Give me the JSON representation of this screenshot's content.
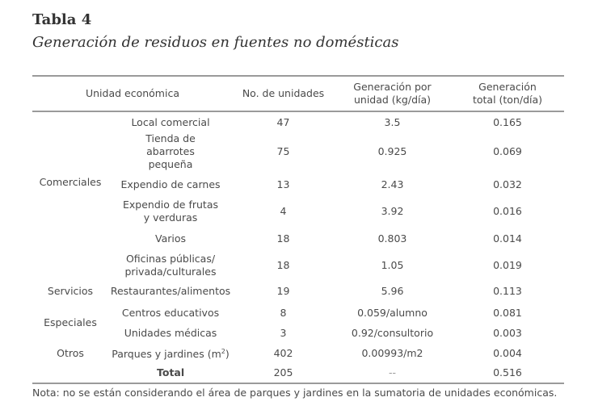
{
  "title": "Tabla 4",
  "subtitle": "Generación de residuos en fuentes no domésticas",
  "headers": [
    "Unidad económica",
    "No. de unidades",
    "Generación por unidad (kg/día)",
    "Generación total (ton/día)"
  ],
  "categories": [
    "Comerciales",
    "Servicios",
    "Especiales",
    "Otros"
  ],
  "rows": [
    {
      "unit": "Local comercial",
      "count": "47",
      "per_unit": "3.5",
      "total": "0.165"
    },
    {
      "unit": "Tienda de abarrotes pequeña",
      "count": "75",
      "per_unit": "0.925",
      "total": "0.069"
    },
    {
      "unit": "Expendio de carnes",
      "count": "13",
      "per_unit": "2.43",
      "total": "0.032"
    },
    {
      "unit": "Expendio de frutas y verduras",
      "count": "4",
      "per_unit": "3.92",
      "total": "0.016"
    },
    {
      "unit": "Varios",
      "count": "18",
      "per_unit": "0.803",
      "total": "0.014"
    },
    {
      "unit": "Oficinas públicas/ privada/culturales",
      "count": "18",
      "per_unit": "1.05",
      "total": "0.019"
    },
    {
      "unit": "Restaurantes/alimentos",
      "count": "19",
      "per_unit": "5.96",
      "total": "0.113"
    },
    {
      "unit": "Centros educativos",
      "count": "8",
      "per_unit": "0.059/alumno",
      "total": "0.081"
    },
    {
      "unit": "Unidades médicas",
      "count": "3",
      "per_unit": "0.92/consultorio",
      "total": "0.003"
    },
    {
      "unit": "Parques y jardines (m",
      "unit_sup": "2",
      "unit_end": ")",
      "count": "402",
      "per_unit": "0.00993/m2",
      "total": "0.004"
    }
  ],
  "total_row": {
    "label": "Total",
    "count": "205",
    "per_unit": "--",
    "total": "0.516"
  },
  "note": "Nota: no se están considerando el área de parques y jardines en la sumatoria de unidades económicas."
}
